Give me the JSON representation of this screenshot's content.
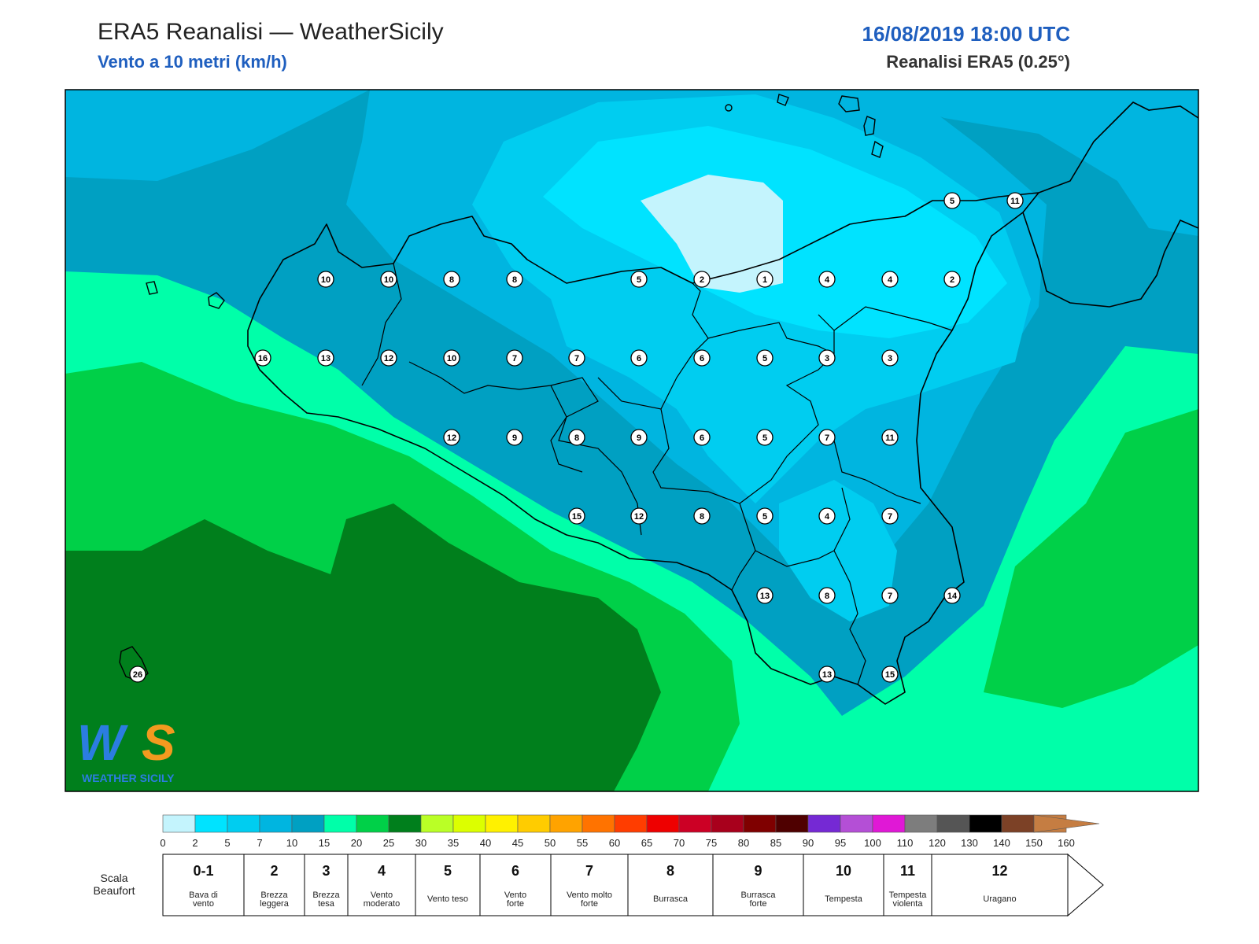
{
  "header": {
    "title": "ERA5 Reanalisi — WeatherSicily",
    "subtitle": "Vento a 10 metri (km/h)",
    "datetime": "16/08/2019 18:00 UTC",
    "source": "Reanalisi ERA5 (0.25°)"
  },
  "logo": {
    "text": "WEATHER SICILY",
    "mark": "WS"
  },
  "map": {
    "type": "wind-speed-map",
    "region": "Sicily",
    "stations": [
      {
        "v": "5"
      },
      {
        "v": "11"
      },
      {
        "v": "10"
      },
      {
        "v": "10"
      },
      {
        "v": "8"
      },
      {
        "v": "8"
      },
      {
        "v": "5"
      },
      {
        "v": "2"
      },
      {
        "v": "1"
      },
      {
        "v": "4"
      },
      {
        "v": "4"
      },
      {
        "v": "2"
      },
      {
        "v": "16"
      },
      {
        "v": "13"
      },
      {
        "v": "12"
      },
      {
        "v": "10"
      },
      {
        "v": "7"
      },
      {
        "v": "7"
      },
      {
        "v": "6"
      },
      {
        "v": "6"
      },
      {
        "v": "5"
      },
      {
        "v": "3"
      },
      {
        "v": "3"
      },
      {
        "v": "12"
      },
      {
        "v": "9"
      },
      {
        "v": "8"
      },
      {
        "v": "9"
      },
      {
        "v": "6"
      },
      {
        "v": "5"
      },
      {
        "v": "7"
      },
      {
        "v": "11"
      },
      {
        "v": "15"
      },
      {
        "v": "12"
      },
      {
        "v": "8"
      },
      {
        "v": "5"
      },
      {
        "v": "4"
      },
      {
        "v": "7"
      },
      {
        "v": "13"
      },
      {
        "v": "8"
      },
      {
        "v": "7"
      },
      {
        "v": "14"
      },
      {
        "v": "13"
      },
      {
        "v": "15"
      },
      {
        "v": "26"
      }
    ]
  },
  "colorbar": {
    "ticks": [
      "0",
      "2",
      "5",
      "7",
      "10",
      "15",
      "20",
      "25",
      "30",
      "35",
      "40",
      "45",
      "50",
      "55",
      "60",
      "65",
      "70",
      "75",
      "80",
      "85",
      "90",
      "95",
      "100",
      "110",
      "120",
      "130",
      "140",
      "150",
      "160"
    ],
    "colors": [
      "#c4f4fd",
      "#00e3ff",
      "#00cdf0",
      "#00b5e0",
      "#00a0c2",
      "#00ffa9",
      "#00d048",
      "#007f1c",
      "#baff26",
      "#dcff00",
      "#fff100",
      "#ffcc00",
      "#ffa300",
      "#ff7300",
      "#ff3d00",
      "#ee0000",
      "#cc0025",
      "#a8001c",
      "#7f0000",
      "#4f0000",
      "#7529d4",
      "#b44fd6",
      "#e018d6",
      "#7d7d7d",
      "#555555",
      "#000000",
      "#7c4126",
      "#c57d42"
    ]
  },
  "beaufort": {
    "title_line1": "Scala",
    "title_line2": "Beaufort",
    "classes": [
      {
        "num": "0-1",
        "l1": "Bava di",
        "l2": "vento"
      },
      {
        "num": "2",
        "l1": "Brezza",
        "l2": "leggera"
      },
      {
        "num": "3",
        "l1": "Brezza",
        "l2": "tesa"
      },
      {
        "num": "4",
        "l1": "Vento",
        "l2": "moderato"
      },
      {
        "num": "5",
        "l1": "Vento teso",
        "l2": ""
      },
      {
        "num": "6",
        "l1": "Vento",
        "l2": "forte"
      },
      {
        "num": "7",
        "l1": "Vento molto",
        "l2": "forte"
      },
      {
        "num": "8",
        "l1": "Burrasca",
        "l2": ""
      },
      {
        "num": "9",
        "l1": "Burrasca",
        "l2": "forte"
      },
      {
        "num": "10",
        "l1": "Tempesta",
        "l2": ""
      },
      {
        "num": "11",
        "l1": "Tempesta",
        "l2": "violenta"
      },
      {
        "num": "12",
        "l1": "Uragano",
        "l2": ""
      }
    ]
  }
}
